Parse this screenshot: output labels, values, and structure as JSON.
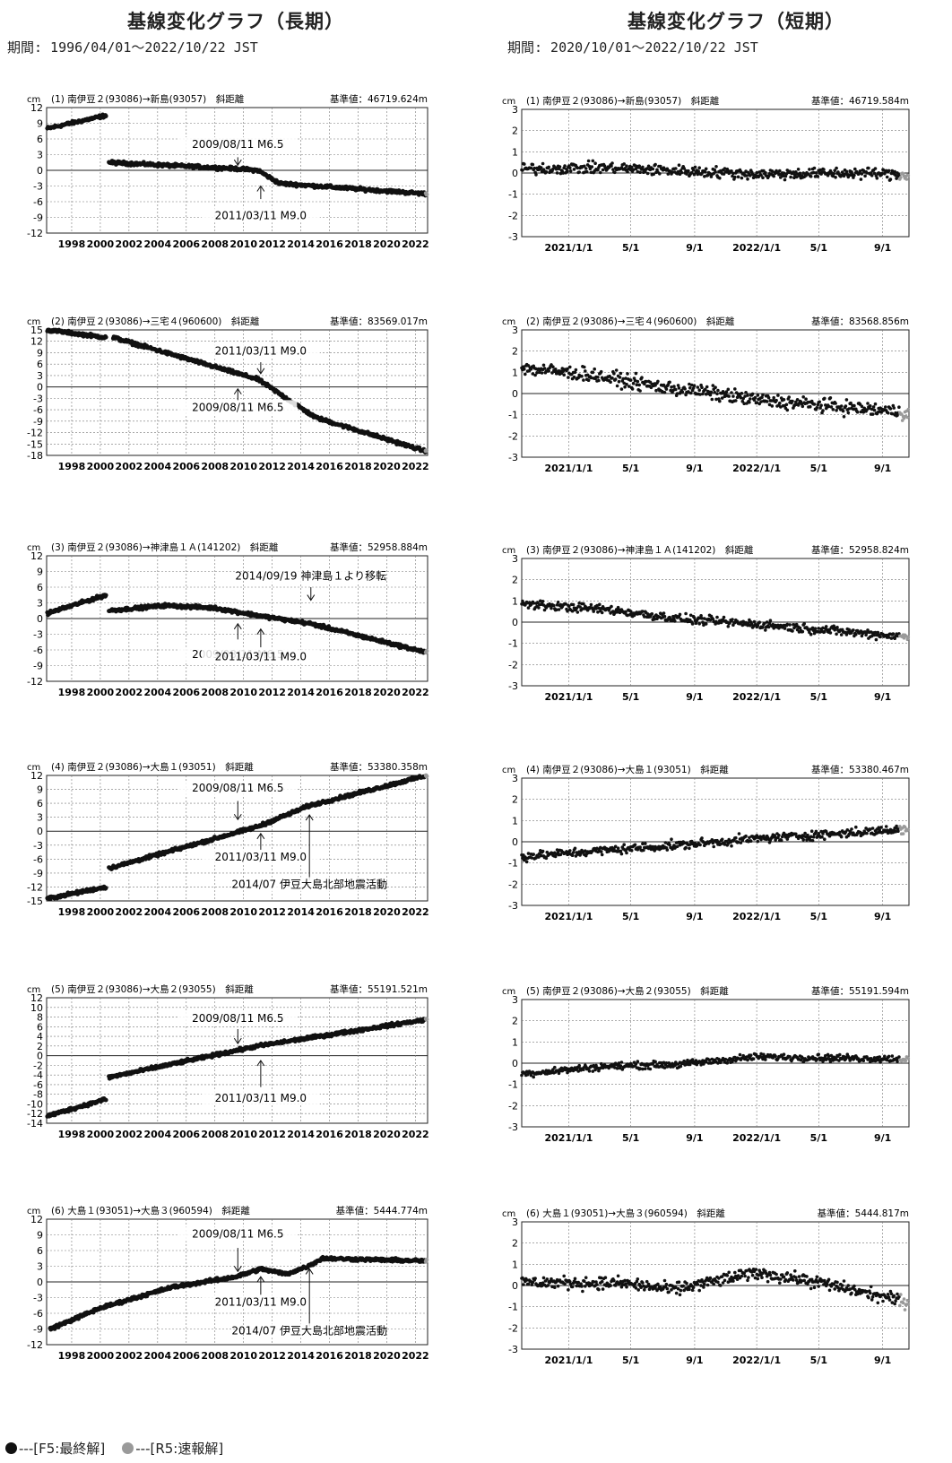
{
  "headers": {
    "long_title": "基線変化グラフ（長期）",
    "short_title": "基線変化グラフ（短期）",
    "long_period": "期間: 1996/04/01～2022/10/22 JST",
    "short_period": "期間: 2020/10/01～2022/10/22 JST"
  },
  "legend": {
    "final_label": "---[F5:最終解]",
    "rapid_label": "---[R5:速報解]",
    "final_color": "#111111",
    "rapid_color": "#9a9a9a"
  },
  "unit": "cm",
  "chart_data": [
    {
      "type": "scatter",
      "panel": "long",
      "title": "(1) 南伊豆２(93086)→新島(93057)　斜距離",
      "reference": "基準値：46719.624m",
      "ylim": [
        -12,
        12
      ],
      "yticks": [
        12,
        9,
        6,
        3,
        0,
        -3,
        -6,
        -9,
        -12
      ],
      "xlim": [
        1996.25,
        2022.85
      ],
      "xticks": [
        "1998",
        "2000",
        "2002",
        "2004",
        "2006",
        "2008",
        "2010",
        "2012",
        "2014",
        "2016",
        "2018",
        "2020",
        "2022"
      ],
      "segments": [
        [
          [
            1996.3,
            8
          ],
          [
            2000.4,
            10.5
          ]
        ],
        [
          [
            2000.6,
            1.5
          ],
          [
            2009.5,
            0.3
          ],
          [
            2011.0,
            0
          ],
          [
            2012.5,
            -2.5
          ],
          [
            2022.8,
            -4.5
          ]
        ]
      ],
      "annotations": [
        {
          "text": "2009/08/11 M6.5",
          "x": 2009.6,
          "yLabel": 4.3,
          "arrowFrom": 2.5,
          "arrowTo": 1.0
        },
        {
          "text": "2011/03/11 M9.0",
          "x": 2011.2,
          "yLabel": -9.3,
          "arrowFrom": -5.5,
          "arrowTo": -3.0
        }
      ]
    },
    {
      "type": "scatter",
      "panel": "long",
      "title": "(2) 南伊豆２(93086)→三宅４(960600)　斜距離",
      "reference": "基準値：83569.017m",
      "ylim": [
        -18,
        15
      ],
      "yticks": [
        15,
        12,
        9,
        6,
        3,
        0,
        -3,
        -6,
        -9,
        -12,
        -15,
        -18
      ],
      "xlim": [
        1996.25,
        2022.85
      ],
      "xticks": [
        "1998",
        "2000",
        "2002",
        "2004",
        "2006",
        "2008",
        "2010",
        "2012",
        "2014",
        "2016",
        "2018",
        "2020",
        "2022"
      ],
      "segments": [
        [
          [
            1996.3,
            15
          ],
          [
            2000.4,
            13
          ]
        ],
        [
          [
            2000.9,
            13
          ],
          [
            2011.0,
            2
          ],
          [
            2015,
            -8
          ],
          [
            2022.8,
            -17
          ]
        ]
      ],
      "annotations": [
        {
          "text": "2011/03/11 M9.0",
          "x": 2011.2,
          "yLabel": 8.5,
          "arrowFrom": 6.5,
          "arrowTo": 3.5
        },
        {
          "text": "2009/08/11 M6.5",
          "x": 2009.6,
          "yLabel": -6.3,
          "arrowFrom": -3.5,
          "arrowTo": -0.5
        }
      ]
    },
    {
      "type": "scatter",
      "panel": "long",
      "title": "(3) 南伊豆２(93086)→神津島１Ａ(141202)　斜距離",
      "reference": "基準値：52958.884m",
      "ylim": [
        -12,
        12
      ],
      "yticks": [
        12,
        9,
        6,
        3,
        0,
        -3,
        -6,
        -9,
        -12
      ],
      "xlim": [
        1996.25,
        2022.85
      ],
      "xticks": [
        "1998",
        "2000",
        "2002",
        "2004",
        "2006",
        "2008",
        "2010",
        "2012",
        "2014",
        "2016",
        "2018",
        "2020",
        "2022"
      ],
      "segments": [
        [
          [
            1996.3,
            1
          ],
          [
            2000.4,
            4.5
          ]
        ],
        [
          [
            2000.6,
            1.5
          ],
          [
            2004.5,
            2.5
          ],
          [
            2008,
            2
          ],
          [
            2011.2,
            0.5
          ],
          [
            2014.7,
            -1
          ],
          [
            2022.8,
            -6.5
          ]
        ]
      ],
      "annotations": [
        {
          "text": "2014/09/19 神津島１より移転",
          "x": 2014.7,
          "yLabel": 7.5,
          "arrowFrom": 6.0,
          "arrowTo": 3.5
        },
        {
          "text": "2009/08/11 M6.5",
          "x": 2009.6,
          "yLabel": -7.5,
          "arrowFrom": -4.0,
          "arrowTo": -1.0
        },
        {
          "text": "2011/03/11 M9.0",
          "x": 2011.2,
          "yLabel": -8.0,
          "arrowFrom": -5.5,
          "arrowTo": -2.0
        }
      ]
    },
    {
      "type": "scatter",
      "panel": "long",
      "title": "(4) 南伊豆２(93086)→大島１(93051)　斜距離",
      "reference": "基準値：53380.358m",
      "ylim": [
        -15,
        12
      ],
      "yticks": [
        12,
        9,
        6,
        3,
        0,
        -3,
        -6,
        -9,
        -12,
        -15
      ],
      "xlim": [
        1996.25,
        2022.85
      ],
      "xticks": [
        "1998",
        "2000",
        "2002",
        "2004",
        "2006",
        "2008",
        "2010",
        "2012",
        "2014",
        "2016",
        "2018",
        "2020",
        "2022"
      ],
      "segments": [
        [
          [
            1996.3,
            -14.5
          ],
          [
            2000.4,
            -12
          ]
        ],
        [
          [
            2000.6,
            -8
          ],
          [
            2011.0,
            1
          ],
          [
            2014.6,
            5.5
          ],
          [
            2022.8,
            12
          ]
        ]
      ],
      "annotations": [
        {
          "text": "2009/08/11 M6.5",
          "x": 2009.6,
          "yLabel": 8.5,
          "arrowFrom": 6.5,
          "arrowTo": 2.5
        },
        {
          "text": "2011/03/11 M9.0",
          "x": 2011.2,
          "yLabel": -6.3,
          "arrowFrom": -4.0,
          "arrowTo": -0.5
        },
        {
          "text": "2014/07 伊豆大島北部地震活動",
          "x": 2014.6,
          "yLabel": -12.2,
          "arrowFrom": -10.5,
          "arrowTo": 3.5
        }
      ]
    },
    {
      "type": "scatter",
      "panel": "long",
      "title": "(5) 南伊豆２(93086)→大島２(93055)　斜距離",
      "reference": "基準値：55191.521m",
      "ylim": [
        -14,
        12
      ],
      "yticks": [
        12,
        10,
        8,
        6,
        4,
        2,
        0,
        -2,
        -4,
        -6,
        -8,
        -10,
        -12,
        -14
      ],
      "xlim": [
        1996.25,
        2022.85
      ],
      "xticks": [
        "1998",
        "2000",
        "2002",
        "2004",
        "2006",
        "2008",
        "2010",
        "2012",
        "2014",
        "2016",
        "2018",
        "2020",
        "2022"
      ],
      "segments": [
        [
          [
            1996.3,
            -12.5
          ],
          [
            2000.4,
            -9
          ]
        ],
        [
          [
            2000.6,
            -4.5
          ],
          [
            2011.0,
            2
          ],
          [
            2022.8,
            7.5
          ]
        ]
      ],
      "annotations": [
        {
          "text": "2009/08/11 M6.5",
          "x": 2009.6,
          "yLabel": 7.0,
          "arrowFrom": 5.5,
          "arrowTo": 2.5
        },
        {
          "text": "2011/03/11 M9.0",
          "x": 2011.2,
          "yLabel": -9.5,
          "arrowFrom": -6.5,
          "arrowTo": -1.0
        }
      ]
    },
    {
      "type": "scatter",
      "panel": "long",
      "title": "(6) 大島１(93051)→大島３(960594)　斜距離",
      "reference": "基準値：5444.774m",
      "ylim": [
        -12,
        12
      ],
      "yticks": [
        12,
        9,
        6,
        3,
        0,
        -3,
        -6,
        -9,
        -12
      ],
      "xlim": [
        1996.25,
        2022.85
      ],
      "xticks": [
        "1998",
        "2000",
        "2002",
        "2004",
        "2006",
        "2008",
        "2010",
        "2012",
        "2014",
        "2016",
        "2018",
        "2020",
        "2022"
      ],
      "segments": [
        [
          [
            1996.5,
            -9
          ],
          [
            2000,
            -5
          ],
          [
            2005,
            -1
          ],
          [
            2009.5,
            1
          ],
          [
            2011.2,
            2.5
          ],
          [
            2013,
            1.5
          ],
          [
            2014.5,
            3
          ],
          [
            2015.5,
            4.5
          ],
          [
            2022.8,
            4
          ]
        ]
      ],
      "annotations": [
        {
          "text": "2009/08/11 M6.5",
          "x": 2009.6,
          "yLabel": 8.5,
          "arrowFrom": 6.5,
          "arrowTo": 2.0
        },
        {
          "text": "2011/03/11 M9.0",
          "x": 2011.2,
          "yLabel": -4.5,
          "arrowFrom": -2.5,
          "arrowTo": 1.0
        },
        {
          "text": "2014/07 伊豆大島北部地震活動",
          "x": 2014.6,
          "yLabel": -10.0,
          "arrowFrom": -8.5,
          "arrowTo": 2.5
        }
      ]
    },
    {
      "type": "scatter",
      "panel": "short",
      "title": "(1) 南伊豆２(93086)→新島(93057)　斜距離",
      "reference": "基準値：46719.584m",
      "ylim": [
        -3,
        3
      ],
      "yticks": [
        3,
        2,
        1,
        0,
        -1,
        -2,
        -3
      ],
      "xlim": [
        2020.75,
        2022.81
      ],
      "xticks": [
        "2021/1/1",
        "5/1",
        "9/1",
        "2022/1/1",
        "5/1",
        "9/1"
      ],
      "segments": [
        [
          [
            2020.75,
            0.2
          ],
          [
            2021.2,
            0.25
          ],
          [
            2021.6,
            0.1
          ],
          [
            2022.0,
            -0.05
          ],
          [
            2022.6,
            0.0
          ],
          [
            2022.81,
            -0.1
          ]
        ]
      ],
      "noise": 0.22,
      "annotations": []
    },
    {
      "type": "scatter",
      "panel": "short",
      "title": "(2) 南伊豆２(93086)→三宅４(960600)　斜距離",
      "reference": "基準値：83568.856m",
      "ylim": [
        -3,
        3
      ],
      "yticks": [
        3,
        2,
        1,
        0,
        -1,
        -2,
        -3
      ],
      "xlim": [
        2020.75,
        2022.81
      ],
      "xticks": [
        "2021/1/1",
        "5/1",
        "9/1",
        "2022/1/1",
        "5/1",
        "9/1"
      ],
      "segments": [
        [
          [
            2020.75,
            1.2
          ],
          [
            2021.1,
            0.9
          ],
          [
            2021.5,
            0.3
          ],
          [
            2021.7,
            0.1
          ],
          [
            2022.0,
            -0.3
          ],
          [
            2022.81,
            -0.9
          ]
        ]
      ],
      "noise": 0.28,
      "annotations": []
    },
    {
      "type": "scatter",
      "panel": "short",
      "title": "(3) 南伊豆２(93086)→神津島１Ａ(141202)　斜距離",
      "reference": "基準値：52958.824m",
      "ylim": [
        -3,
        3
      ],
      "yticks": [
        3,
        2,
        1,
        0,
        -1,
        -2,
        -3
      ],
      "xlim": [
        2020.75,
        2022.81
      ],
      "xticks": [
        "2021/1/1",
        "5/1",
        "9/1",
        "2022/1/1",
        "5/1",
        "9/1"
      ],
      "segments": [
        [
          [
            2020.75,
            0.85
          ],
          [
            2021.2,
            0.6
          ],
          [
            2021.6,
            0.15
          ],
          [
            2022.0,
            -0.1
          ],
          [
            2022.81,
            -0.7
          ]
        ]
      ],
      "noise": 0.18,
      "annotations": []
    },
    {
      "type": "scatter",
      "panel": "short",
      "title": "(4) 南伊豆２(93086)→大島１(93051)　斜距離",
      "reference": "基準値：53380.467m",
      "ylim": [
        -3,
        3
      ],
      "yticks": [
        3,
        2,
        1,
        0,
        -1,
        -2,
        -3
      ],
      "xlim": [
        2020.75,
        2022.81
      ],
      "xticks": [
        "2021/1/1",
        "5/1",
        "9/1",
        "2022/1/1",
        "5/1",
        "9/1"
      ],
      "segments": [
        [
          [
            2020.75,
            -0.7
          ],
          [
            2021.2,
            -0.4
          ],
          [
            2021.6,
            -0.15
          ],
          [
            2022.0,
            0.15
          ],
          [
            2022.81,
            0.6
          ]
        ]
      ],
      "noise": 0.18,
      "annotations": []
    },
    {
      "type": "scatter",
      "panel": "short",
      "title": "(5) 南伊豆２(93086)→大島２(93055)　斜距離",
      "reference": "基準値：55191.594m",
      "ylim": [
        -3,
        3
      ],
      "yticks": [
        3,
        2,
        1,
        0,
        -1,
        -2,
        -3
      ],
      "xlim": [
        2020.75,
        2022.81
      ],
      "xticks": [
        "2021/1/1",
        "5/1",
        "9/1",
        "2022/1/1",
        "5/1",
        "9/1"
      ],
      "segments": [
        [
          [
            2020.75,
            -0.5
          ],
          [
            2021.2,
            -0.15
          ],
          [
            2021.6,
            -0.05
          ],
          [
            2022.0,
            0.3
          ],
          [
            2022.81,
            0.2
          ]
        ]
      ],
      "noise": 0.14,
      "annotations": []
    },
    {
      "type": "scatter",
      "panel": "short",
      "title": "(6) 大島１(93051)→大島３(960594)　斜距離",
      "reference": "基準値：5444.817m",
      "ylim": [
        -3,
        3
      ],
      "yticks": [
        3,
        2,
        1,
        0,
        -1,
        -2,
        -3
      ],
      "xlim": [
        2020.75,
        2022.81
      ],
      "xticks": [
        "2021/1/1",
        "5/1",
        "9/1",
        "2022/1/1",
        "5/1",
        "9/1"
      ],
      "segments": [
        [
          [
            2020.75,
            0.15
          ],
          [
            2021.3,
            0.1
          ],
          [
            2021.55,
            -0.2
          ],
          [
            2022.0,
            0.6
          ],
          [
            2022.3,
            0.2
          ],
          [
            2022.81,
            -0.8
          ]
        ]
      ],
      "noise": 0.25,
      "annotations": []
    }
  ]
}
